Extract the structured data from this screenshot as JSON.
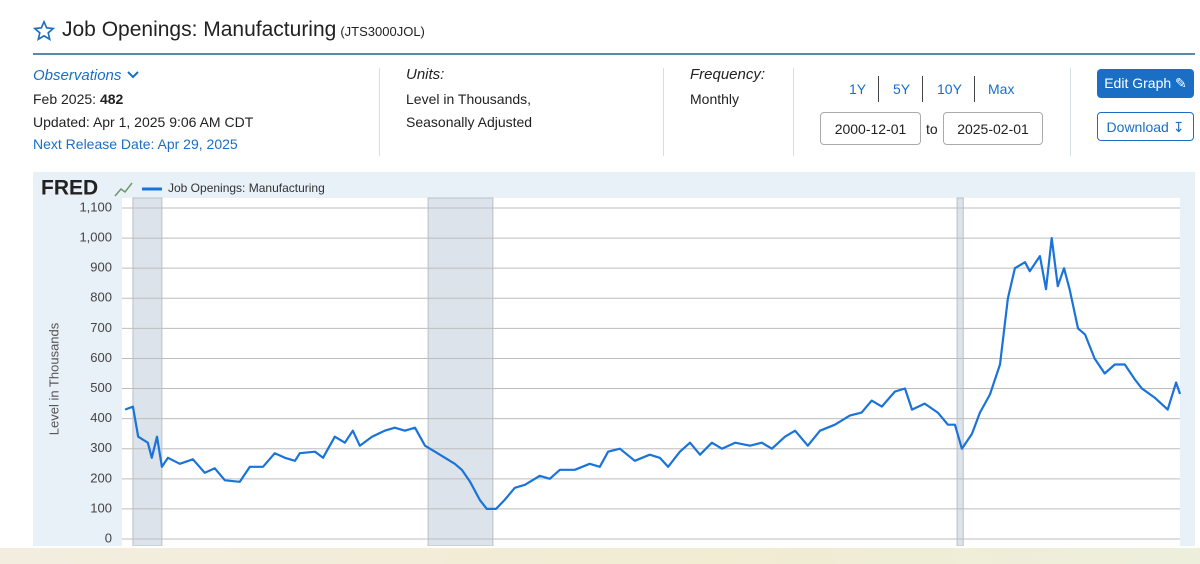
{
  "header": {
    "title": "Job Openings: Manufacturing",
    "series_id": "(JTS3000JOL)"
  },
  "observations": {
    "label": "Observations",
    "date": "Feb 2025:",
    "value": "482",
    "updated": "Updated: Apr 1, 2025 9:06 AM CDT",
    "next_release": "Next Release Date: Apr 29, 2025"
  },
  "units": {
    "label": "Units:",
    "lines": [
      "Level in Thousands,",
      "Seasonally Adjusted"
    ]
  },
  "frequency": {
    "label": "Frequency:",
    "value": "Monthly"
  },
  "range_buttons": [
    "1Y",
    "5Y",
    "10Y",
    "Max"
  ],
  "date_range": {
    "start": "2000-12-01",
    "separator": "to",
    "end": "2025-02-01"
  },
  "actions": [
    "Edit Graph",
    "Download"
  ],
  "chart_data": {
    "type": "line",
    "logo": "FRED",
    "y_label": "Level in Thousands",
    "x": [
      2000.99,
      2001.17,
      2001.29,
      2001.51,
      2001.6,
      2001.72,
      2001.83,
      2001.97,
      2002.24,
      2002.54,
      2002.81,
      2003.04,
      2003.27,
      2003.61,
      2003.84,
      2004.14,
      2004.41,
      2004.64,
      2004.87,
      2004.98,
      2005.33,
      2005.51,
      2005.78,
      2006.01,
      2006.19,
      2006.35,
      2006.63,
      2006.92,
      2007.15,
      2007.38,
      2007.61,
      2007.84,
      2008.18,
      2008.52,
      2008.68,
      2008.87,
      2009.09,
      2009.25,
      2009.46,
      2009.66,
      2009.89,
      2010.12,
      2010.46,
      2010.69,
      2010.92,
      2011.26,
      2011.6,
      2011.83,
      2012.02,
      2012.29,
      2012.63,
      2012.97,
      2013.2,
      2013.39,
      2013.66,
      2013.89,
      2014.12,
      2014.39,
      2014.62,
      2014.92,
      2015.26,
      2015.53,
      2015.76,
      2016.06,
      2016.29,
      2016.58,
      2016.86,
      2017.2,
      2017.54,
      2017.81,
      2018.04,
      2018.27,
      2018.57,
      2018.8,
      2018.96,
      2019.25,
      2019.55,
      2019.78,
      2019.94,
      2020.1,
      2020.33,
      2020.51,
      2020.74,
      2020.97,
      2021.15,
      2021.31,
      2021.54,
      2021.65,
      2021.88,
      2022.02,
      2022.15,
      2022.29,
      2022.43,
      2022.56,
      2022.75,
      2022.91,
      2023.13,
      2023.36,
      2023.59,
      2023.82,
      2024.05,
      2024.21,
      2024.5,
      2024.8,
      2024.99,
      2025.08
    ],
    "series": [
      {
        "name": "Job Openings: Manufacturing",
        "color": "#1a73d9",
        "values": [
          430,
          440,
          340,
          320,
          270,
          340,
          240,
          270,
          250,
          265,
          220,
          235,
          195,
          190,
          240,
          240,
          285,
          270,
          260,
          285,
          290,
          270,
          340,
          320,
          360,
          310,
          340,
          360,
          370,
          360,
          370,
          310,
          280,
          250,
          230,
          190,
          130,
          100,
          100,
          130,
          170,
          180,
          210,
          200,
          230,
          230,
          250,
          240,
          290,
          300,
          260,
          280,
          270,
          240,
          290,
          320,
          280,
          320,
          300,
          320,
          310,
          320,
          300,
          340,
          360,
          310,
          360,
          380,
          410,
          420,
          460,
          440,
          490,
          500,
          430,
          450,
          420,
          380,
          380,
          300,
          350,
          420,
          480,
          580,
          800,
          900,
          920,
          890,
          940,
          830,
          1000,
          840,
          900,
          830,
          700,
          680,
          600,
          550,
          580,
          580,
          530,
          500,
          470,
          430,
          520,
          482
        ]
      }
    ],
    "recessions": [
      [
        2001.17,
        2001.83
      ],
      [
        2007.91,
        2009.39
      ],
      [
        2019.99,
        2020.13
      ]
    ],
    "recession_color": "#dde3ea",
    "xlim": [
      2000.92,
      2025.08
    ],
    "ylim": [
      0,
      1100
    ],
    "yticks": [
      0,
      100,
      200,
      300,
      400,
      500,
      600,
      700,
      800,
      900,
      {
        "value": 1000,
        "label": "1,000"
      },
      {
        "value": 1100,
        "label": "1,100"
      }
    ],
    "grid": true
  }
}
